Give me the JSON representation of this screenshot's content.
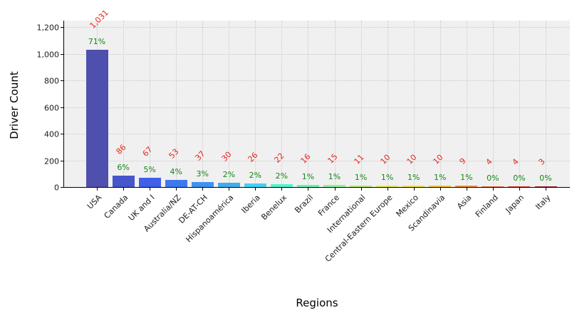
{
  "chart_data": {
    "type": "bar",
    "title": "",
    "xlabel": "Regions",
    "ylabel": "Driver Count",
    "categories": [
      "USA",
      "Canada",
      "UK and I",
      "Australia/NZ",
      "DE-AT-CH",
      "Hispanoamérica",
      "Iberia",
      "Benelux",
      "Brazil",
      "France",
      "International",
      "Central-Eastern Europe",
      "Mexico",
      "Scandinavia",
      "Asia",
      "Finland",
      "Japan",
      "Italy"
    ],
    "values": [
      1031,
      86,
      67,
      53,
      37,
      30,
      26,
      22,
      16,
      15,
      11,
      10,
      10,
      10,
      9,
      4,
      4,
      3
    ],
    "value_labels": [
      "1,031",
      "86",
      "67",
      "53",
      "37",
      "30",
      "26",
      "22",
      "16",
      "15",
      "11",
      "10",
      "10",
      "10",
      "9",
      "4",
      "4",
      "3"
    ],
    "pct_labels": [
      "71%",
      "6%",
      "5%",
      "4%",
      "3%",
      "2%",
      "2%",
      "2%",
      "1%",
      "1%",
      "1%",
      "1%",
      "1%",
      "1%",
      "1%",
      "0%",
      "0%",
      "0%"
    ],
    "bar_colors": [
      "#4f4fae",
      "#4656cb",
      "#3f60e8",
      "#3e78ee",
      "#3f92f0",
      "#43acee",
      "#47d0f2",
      "#58f2cd",
      "#6ef2af",
      "#90f298",
      "#b2ea7a",
      "#e2ee5c",
      "#f2e24c",
      "#f5c342",
      "#f0913c",
      "#ea6d41",
      "#da4534",
      "#a53137"
    ],
    "ylim": [
      0,
      1240
    ],
    "yticks": [
      0,
      200,
      400,
      600,
      800,
      1000,
      1200
    ],
    "ytick_labels": [
      "0",
      "200",
      "400",
      "600",
      "800",
      "1,000",
      "1,200"
    ],
    "grid": "dotted both axes",
    "legend": "none",
    "value_label_color": "#e8251f",
    "pct_label_color": "#168716",
    "plot_bg_color": "#f0f0f0",
    "figure_bg_color": "#ffffff"
  }
}
